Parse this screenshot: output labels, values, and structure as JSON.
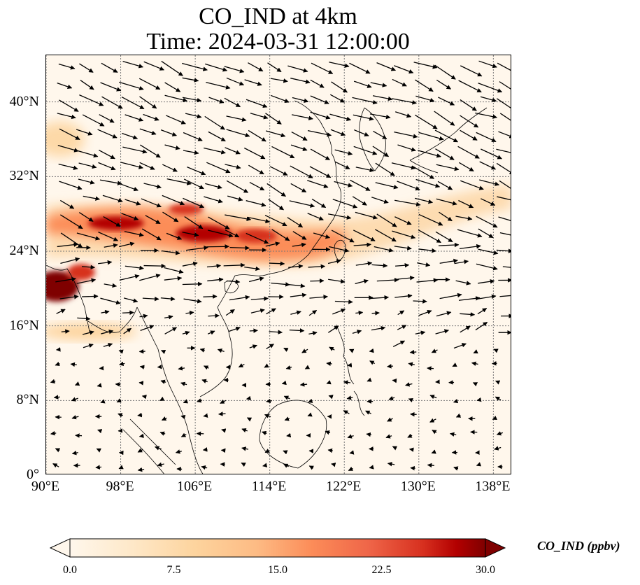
{
  "title": {
    "line1": "CO_IND at 4km",
    "line2": "Time: 2024-03-31 12:00:00"
  },
  "map": {
    "variable": "CO_IND",
    "units": "ppbv",
    "lon_range": [
      90,
      140
    ],
    "lat_range": [
      0,
      45
    ],
    "x_ticks": [
      "90°E",
      "98°E",
      "106°E",
      "114°E",
      "122°E",
      "130°E",
      "138°E"
    ],
    "y_ticks": [
      "0°",
      "8°N",
      "16°N",
      "24°N",
      "32°N",
      "40°N"
    ],
    "gridlines": "dotted",
    "colormap": "OrRd",
    "colors": {
      "low": "#fff7ec",
      "mid": "#fc8d59",
      "high": "#7f0000"
    },
    "features": [
      "coastlines",
      "country borders",
      "wind vectors"
    ]
  },
  "colorbar": {
    "ticks": [
      "0.0",
      "7.5",
      "15.0",
      "22.5",
      "30.0"
    ],
    "min": 0,
    "max": 30,
    "extend": "both",
    "label": "CO_IND (ppbv)"
  }
}
